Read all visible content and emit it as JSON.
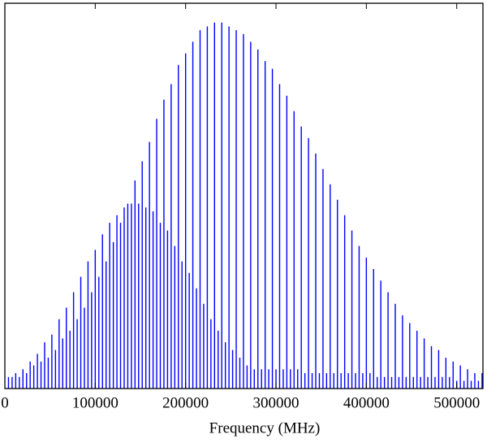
{
  "chart_data": {
    "type": "stem",
    "color": "#0000ff",
    "x_label": "Frequency (MHz)",
    "xlim": [
      0,
      529000
    ],
    "ylim": [
      0,
      100
    ],
    "xticks": [
      0,
      100000,
      200000,
      300000,
      400000,
      500000
    ],
    "x": [
      4000,
      8000,
      12000,
      16000,
      20000,
      24000,
      28000,
      32000,
      36000,
      40000,
      44000,
      48000,
      52000,
      56000,
      60000,
      64000,
      68000,
      72000,
      76000,
      80000,
      84000,
      88000,
      92000,
      96000,
      100000,
      104000,
      108000,
      112000,
      116000,
      120000,
      124000,
      128000,
      132000,
      136000,
      140000,
      144000,
      148000,
      152000,
      156000,
      160000,
      164000,
      168000,
      172000,
      176000,
      180000,
      184000,
      188000,
      192000,
      196000,
      200000,
      204000,
      208000,
      212000,
      216000,
      220000,
      224000,
      228000,
      232000,
      236000,
      240000,
      244000,
      248000,
      252000,
      256000,
      260000,
      264000,
      268000,
      272000,
      276000,
      280000,
      284000,
      288000,
      292000,
      296000,
      300000,
      304000,
      308000,
      312000,
      316000,
      320000,
      324000,
      328000,
      332000,
      336000,
      340000,
      344000,
      348000,
      352000,
      356000,
      360000,
      364000,
      368000,
      372000,
      376000,
      380000,
      384000,
      388000,
      392000,
      396000,
      400000,
      404000,
      408000,
      412000,
      416000,
      420000,
      424000,
      428000,
      432000,
      436000,
      440000,
      444000,
      448000,
      452000,
      456000,
      460000,
      464000,
      468000,
      472000,
      476000,
      480000,
      484000,
      488000,
      492000,
      496000,
      500000,
      504000,
      508000,
      512000,
      516000,
      520000,
      524000,
      528000
    ],
    "values": [
      3,
      3,
      4,
      3,
      5,
      4,
      7,
      6,
      9,
      7,
      12,
      8,
      14,
      10,
      18,
      13,
      21,
      15,
      25,
      18,
      29,
      21,
      33,
      25,
      36,
      29,
      40,
      33,
      43,
      38,
      45,
      43,
      47,
      48,
      48,
      54,
      48,
      59,
      47,
      64,
      46,
      70,
      43,
      75,
      41,
      79,
      37,
      84,
      33,
      87,
      30,
      90,
      26,
      93,
      22,
      94,
      18,
      95,
      15,
      95,
      12,
      94,
      10,
      93,
      8,
      92,
      6,
      90,
      5,
      88,
      5,
      85,
      5,
      83,
      5,
      79,
      5,
      76,
      5,
      72,
      5,
      68,
      4,
      65,
      4,
      61,
      4,
      57,
      4,
      53,
      4,
      49,
      4,
      45,
      4,
      41,
      4,
      37,
      4,
      34,
      4,
      31,
      3,
      28,
      3,
      25,
      3,
      22,
      3,
      19,
      3,
      17,
      3,
      15,
      3,
      13,
      3,
      11,
      3,
      10,
      3,
      8,
      3,
      7,
      2,
      6,
      2,
      5,
      2,
      4,
      2,
      4
    ]
  }
}
